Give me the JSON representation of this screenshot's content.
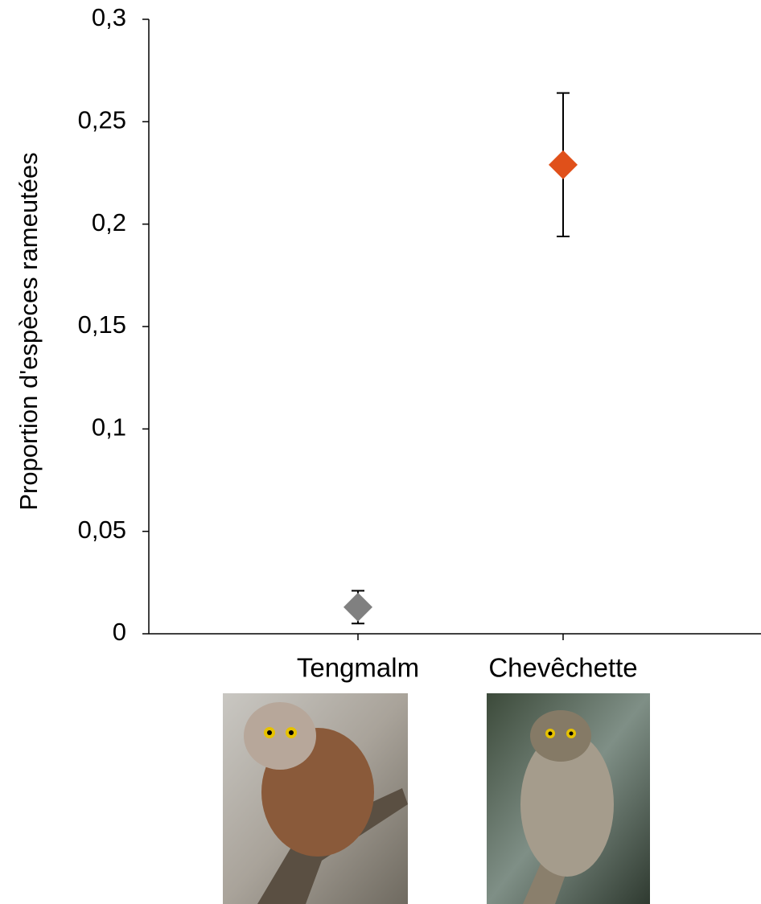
{
  "chart_data": {
    "type": "errorbar",
    "y_label": "Proportion  d'espèces rameutées",
    "categories": [
      "Tengmalm",
      "Chevêchette"
    ],
    "values": [
      0.013,
      0.229
    ],
    "errors": [
      0.008,
      0.035
    ],
    "colors": [
      "#808080",
      "#e0501a"
    ],
    "ylim": [
      0,
      0.3
    ],
    "yticks": [
      0,
      {
        "value": 0.05,
        "label": "0,05"
      },
      {
        "value": 0.1,
        "label": "0,1"
      },
      {
        "value": 0.15,
        "label": "0,15"
      },
      {
        "value": 0.2,
        "label": "0,2"
      },
      {
        "value": 0.25,
        "label": "0,25"
      },
      {
        "value": 0.3,
        "label": "0,3"
      }
    ],
    "grid": false
  }
}
